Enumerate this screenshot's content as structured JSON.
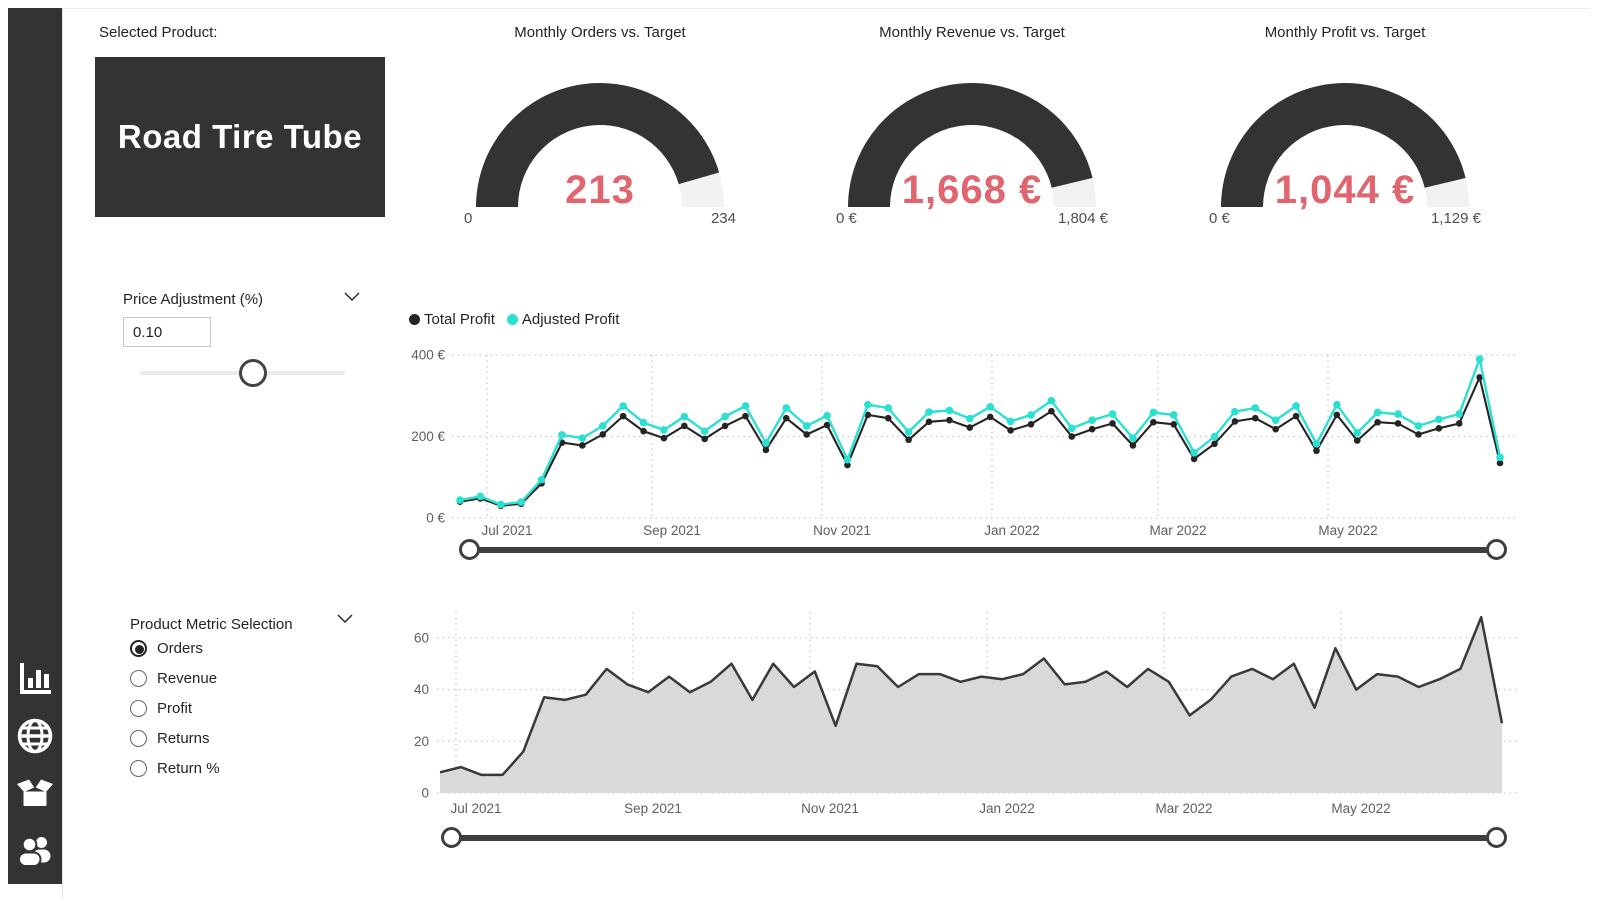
{
  "sidebar": {
    "icons": [
      "bar-chart",
      "globe",
      "box",
      "people"
    ]
  },
  "product": {
    "label": "Selected Product:",
    "name": "Road Tire Tube"
  },
  "gauges": [
    {
      "title": "Monthly Orders vs. Target",
      "value": 213,
      "max": 234,
      "value_label": "213",
      "min_label": "0",
      "max_label": "234"
    },
    {
      "title": "Monthly Revenue vs. Target",
      "value": 1668,
      "max": 1804,
      "value_label": "1,668 €",
      "min_label": "0 €",
      "max_label": "1,804 €"
    },
    {
      "title": "Monthly Profit vs. Target",
      "value": 1044,
      "max": 1129,
      "value_label": "1,044 €",
      "min_label": "0 €",
      "max_label": "1,129 €"
    }
  ],
  "price_adjustment": {
    "label": "Price Adjustment (%)",
    "value": "0.10"
  },
  "metric_selection": {
    "label": "Product Metric Selection",
    "options": [
      "Orders",
      "Revenue",
      "Profit",
      "Returns",
      "Return %"
    ],
    "selected": "Orders"
  },
  "colors": {
    "dark": "#333333",
    "gauge_rest": "#f2f2f2",
    "gauge_value": "#e0656f",
    "total_line": "#252423",
    "adjusted_line": "#29e0d2",
    "area_fill": "#d9d9d9",
    "area_line": "#3a3a3a",
    "axis_text": "#605e5c",
    "grid": "#c9c9c9"
  },
  "chart_data": [
    {
      "type": "line",
      "legend": [
        "Total Profit",
        "Adjusted Profit"
      ],
      "legend_position": "top-left",
      "grid": true,
      "x_tick_labels": [
        "Jul 2021",
        "Sep 2021",
        "Nov 2021",
        "Jan 2022",
        "Mar 2022",
        "May 2022"
      ],
      "y_ticks": [
        0,
        200,
        400
      ],
      "y_tick_labels": [
        "0 €",
        "200 €",
        "400 €"
      ],
      "ylim": [
        0,
        400
      ],
      "x_unit": "week",
      "series": [
        {
          "name": "Total Profit",
          "color": "#252423",
          "values": [
            40,
            48,
            30,
            35,
            85,
            185,
            178,
            205,
            250,
            213,
            196,
            226,
            194,
            226,
            250,
            167,
            245,
            205,
            228,
            130,
            253,
            245,
            192,
            236,
            240,
            222,
            248,
            215,
            230,
            262,
            200,
            218,
            232,
            178,
            235,
            230,
            145,
            182,
            237,
            245,
            218,
            250,
            165,
            253,
            190,
            235,
            232,
            205,
            220,
            232,
            345,
            135
          ]
        },
        {
          "name": "Adjusted Profit",
          "color": "#29e0d2",
          "values": [
            44,
            53,
            33,
            39,
            94,
            204,
            196,
            226,
            275,
            234,
            216,
            249,
            213,
            249,
            275,
            184,
            270,
            226,
            251,
            143,
            278,
            270,
            211,
            260,
            264,
            244,
            273,
            237,
            253,
            288,
            220,
            240,
            255,
            196,
            259,
            253,
            160,
            200,
            261,
            270,
            240,
            275,
            182,
            278,
            209,
            259,
            255,
            226,
            242,
            255,
            390,
            149
          ]
        }
      ]
    },
    {
      "type": "area",
      "name": "Orders",
      "grid": true,
      "x_tick_labels": [
        "Jul 2021",
        "Sep 2021",
        "Nov 2021",
        "Jan 2022",
        "Mar 2022",
        "May 2022"
      ],
      "y_ticks": [
        0,
        20,
        40,
        60
      ],
      "y_tick_labels": [
        "0",
        "20",
        "40",
        "60"
      ],
      "ylim": [
        0,
        70
      ],
      "x_unit": "week",
      "values": [
        8,
        10,
        7,
        7,
        16,
        37,
        36,
        38,
        48,
        42,
        39,
        45,
        39,
        43,
        50,
        36,
        50,
        41,
        47,
        26,
        50,
        49,
        41,
        46,
        46,
        43,
        45,
        44,
        46,
        52,
        42,
        43,
        47,
        41,
        48,
        43,
        30,
        36,
        45,
        48,
        44,
        50,
        33,
        56,
        40,
        46,
        45,
        41,
        44,
        48,
        68,
        27
      ]
    }
  ]
}
